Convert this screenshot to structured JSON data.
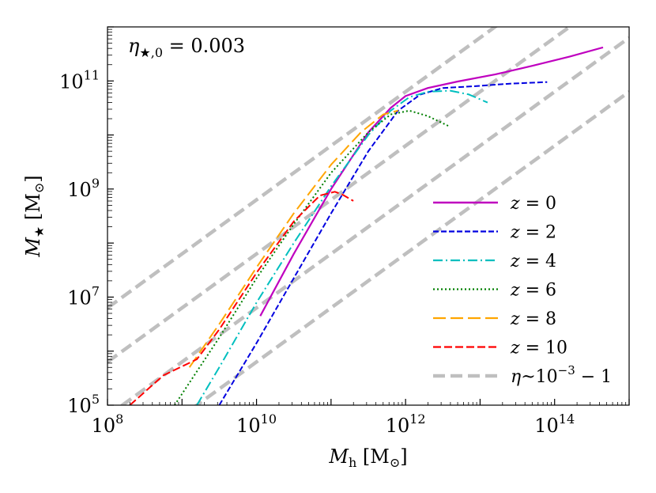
{
  "chart_data": {
    "type": "line",
    "title": "",
    "annotation": {
      "main": "η",
      "sub": "★,0",
      "rest": " = 0.003"
    },
    "xlabel": {
      "main": "M",
      "sub": "h",
      "unit": " [M",
      "unit_sub": "⊙",
      "unit_end": "]"
    },
    "ylabel": {
      "main": "M",
      "sub": "★",
      "unit": " [M",
      "unit_sub": "⊙",
      "unit_end": "]"
    },
    "xscale": "log",
    "yscale": "log",
    "xlim_log10": [
      8,
      15
    ],
    "ylim_log10": [
      5,
      12
    ],
    "xticks": [
      {
        "base": "10",
        "exp": "8",
        "value": 8
      },
      {
        "base": "10",
        "exp": "10",
        "value": 10
      },
      {
        "base": "10",
        "exp": "12",
        "value": 12
      },
      {
        "base": "10",
        "exp": "14",
        "value": 14
      }
    ],
    "yticks": [
      {
        "base": "10",
        "exp": "5",
        "value": 5
      },
      {
        "base": "10",
        "exp": "7",
        "value": 7
      },
      {
        "base": "10",
        "exp": "9",
        "value": 9
      },
      {
        "base": "10",
        "exp": "11",
        "value": 11
      }
    ],
    "legend_position": "lower-right",
    "series": [
      {
        "name": "z = 0",
        "label": {
          "var": "z",
          "val": " = 0"
        },
        "color": "#bf00bf",
        "dash": "",
        "width": 2.2,
        "points": [
          [
            10.05,
            6.65
          ],
          [
            10.5,
            7.8
          ],
          [
            11.0,
            9.0
          ],
          [
            11.5,
            10.05
          ],
          [
            11.8,
            10.5
          ],
          [
            12.0,
            10.72
          ],
          [
            12.3,
            10.87
          ],
          [
            12.7,
            10.99
          ],
          [
            13.2,
            11.12
          ],
          [
            13.7,
            11.28
          ],
          [
            14.2,
            11.45
          ],
          [
            14.65,
            11.62
          ]
        ]
      },
      {
        "name": "z = 2",
        "label": {
          "var": "z",
          "val": " = 2"
        },
        "color": "#0000e0",
        "dash": "7,3",
        "width": 2.0,
        "points": [
          [
            9.5,
            5.0
          ],
          [
            10.0,
            6.15
          ],
          [
            10.5,
            7.35
          ],
          [
            11.0,
            8.55
          ],
          [
            11.5,
            9.7
          ],
          [
            11.9,
            10.45
          ],
          [
            12.2,
            10.75
          ],
          [
            12.5,
            10.87
          ],
          [
            12.9,
            10.9
          ],
          [
            13.4,
            10.95
          ],
          [
            13.9,
            10.98
          ]
        ]
      },
      {
        "name": "z = 4",
        "label": {
          "var": "z",
          "val": " = 4"
        },
        "color": "#00bfbf",
        "dash": "12,4,2,4",
        "width": 2.0,
        "points": [
          [
            9.2,
            5.0
          ],
          [
            9.5,
            5.7
          ],
          [
            10.0,
            6.9
          ],
          [
            10.5,
            8.0
          ],
          [
            11.0,
            9.05
          ],
          [
            11.5,
            10.0
          ],
          [
            11.8,
            10.45
          ],
          [
            12.05,
            10.7
          ],
          [
            12.3,
            10.8
          ],
          [
            12.6,
            10.82
          ],
          [
            12.85,
            10.75
          ],
          [
            13.1,
            10.6
          ]
        ]
      },
      {
        "name": "z = 6",
        "label": {
          "var": "z",
          "val": " = 6"
        },
        "color": "#007f00",
        "dash": "2,3",
        "width": 2.0,
        "points": [
          [
            8.9,
            5.0
          ],
          [
            9.5,
            6.25
          ],
          [
            10.0,
            7.35
          ],
          [
            10.5,
            8.35
          ],
          [
            11.0,
            9.3
          ],
          [
            11.5,
            10.05
          ],
          [
            11.8,
            10.38
          ],
          [
            12.05,
            10.45
          ],
          [
            12.3,
            10.35
          ],
          [
            12.6,
            10.15
          ]
        ]
      },
      {
        "name": "z = 8",
        "label": {
          "var": "z",
          "val": " = 8"
        },
        "color": "#ffa500",
        "dash": "16,6",
        "width": 2.0,
        "points": [
          [
            9.1,
            5.7
          ],
          [
            9.5,
            6.5
          ],
          [
            10.0,
            7.55
          ],
          [
            10.5,
            8.55
          ],
          [
            11.0,
            9.45
          ],
          [
            11.4,
            10.05
          ],
          [
            11.7,
            10.38
          ],
          [
            11.9,
            10.45
          ]
        ]
      },
      {
        "name": "z = 10",
        "label": {
          "var": "z",
          "val": " = 10"
        },
        "color": "#ff0000",
        "dash": "10,4",
        "width": 2.0,
        "points": [
          [
            8.3,
            5.0
          ],
          [
            8.75,
            5.55
          ],
          [
            9.2,
            5.85
          ],
          [
            9.5,
            6.4
          ],
          [
            10.0,
            7.45
          ],
          [
            10.5,
            8.4
          ],
          [
            10.85,
            8.88
          ],
          [
            11.05,
            8.95
          ],
          [
            11.15,
            8.9
          ],
          [
            11.3,
            8.78
          ]
        ]
      },
      {
        "name": "η~10^-3 - 1",
        "label": {
          "var": "η",
          "val": "~10",
          "sup": "−3",
          "end": " − 1"
        },
        "color": "#bfbfbf",
        "dash": "15,7",
        "width": 4.5,
        "guide": true,
        "lines": [
          {
            "a": -1.2,
            "x0": 8,
            "x1": 15
          },
          {
            "a": -2.2,
            "x0": 8,
            "x1": 15
          },
          {
            "a": -3.2,
            "x0": 8,
            "x1": 15
          },
          {
            "a": -4.2,
            "x0": 8,
            "x1": 15
          }
        ]
      }
    ]
  }
}
